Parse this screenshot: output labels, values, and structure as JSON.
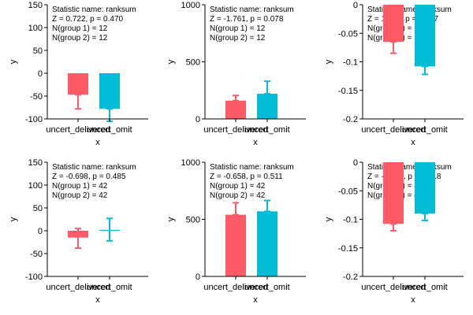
{
  "colors": {
    "group1": "#fd5c67",
    "group2": "#00bcd6",
    "axis": "#000000"
  },
  "chart_data": [
    {
      "type": "bar",
      "categories": [
        "uncert_delivered",
        "uncert_omit"
      ],
      "values": [
        -47,
        -78
      ],
      "error_low": [
        -78,
        -105
      ],
      "error_high": [
        -47,
        -78
      ],
      "ylim": [
        -100,
        150
      ],
      "yticks": [
        -100,
        -50,
        0,
        50,
        100,
        150
      ],
      "ytick_labels": [
        "-100",
        "-50",
        "0",
        "50",
        "100",
        "150"
      ],
      "xlabel": "x",
      "ylabel": "y",
      "annotations": [
        "Statistic name: ranksum",
        "Z = 0.722, p = 0.470",
        "N(group 1) = 12",
        "N(group 2) = 12"
      ]
    },
    {
      "type": "bar",
      "categories": [
        "uncert_delivered",
        "uncert_omit"
      ],
      "values": [
        160,
        220
      ],
      "error_low": [
        160,
        220
      ],
      "error_high": [
        205,
        330
      ],
      "ylim": [
        0,
        1000
      ],
      "yticks": [
        0,
        500,
        1000
      ],
      "ytick_labels": [
        "0",
        "500",
        "1000"
      ],
      "xlabel": "x",
      "ylabel": "y",
      "annotations": [
        "Statistic name: ranksum",
        "Z = -1.761, p = 0.078",
        "N(group 1) = 12",
        "N(group 2) = 12"
      ]
    },
    {
      "type": "bar",
      "categories": [
        "uncert_delivered",
        "uncert_omit"
      ],
      "values": [
        -0.065,
        -0.108
      ],
      "error_low": [
        -0.085,
        -0.122
      ],
      "error_high": [
        -0.065,
        -0.108
      ],
      "ylim": [
        -0.2,
        0
      ],
      "yticks": [
        -0.2,
        -0.15,
        -0.1,
        -0.05,
        0
      ],
      "ytick_labels": [
        "-0.2",
        "-0.15",
        "-0.1",
        "-0.05",
        "0"
      ],
      "xlabel": "x",
      "ylabel": "y",
      "annotations": [
        "Statistic name: ranksum",
        "Z = 1.184, p = 0.237",
        "N(group 1) = 12",
        "N(group 2) = 12"
      ]
    },
    {
      "type": "bar",
      "categories": [
        "uncert_delivered",
        "uncert_omit"
      ],
      "values": [
        -15,
        2
      ],
      "error_low": [
        -38,
        -22
      ],
      "error_high": [
        5,
        27
      ],
      "ylim": [
        -100,
        150
      ],
      "yticks": [
        -100,
        -50,
        0,
        50,
        100,
        150
      ],
      "ytick_labels": [
        "-100",
        "-50",
        "0",
        "50",
        "100",
        "150"
      ],
      "xlabel": "x",
      "ylabel": "y",
      "annotations": [
        "Statistic name: ranksum",
        "Z = -0.698, p = 0.485",
        "N(group 1) = 42",
        "N(group 2) = 42"
      ]
    },
    {
      "type": "bar",
      "categories": [
        "uncert_delivered",
        "uncert_omit"
      ],
      "values": [
        540,
        570
      ],
      "error_low": [
        540,
        570
      ],
      "error_high": [
        645,
        665
      ],
      "ylim": [
        0,
        1000
      ],
      "yticks": [
        0,
        500,
        1000
      ],
      "ytick_labels": [
        "0",
        "500",
        "1000"
      ],
      "xlabel": "x",
      "ylabel": "y",
      "annotations": [
        "Statistic name: ranksum",
        "Z = -0.658, p = 0.511",
        "N(group 1) = 42",
        "N(group 2) = 42"
      ]
    },
    {
      "type": "bar",
      "categories": [
        "uncert_delivered",
        "uncert_omit"
      ],
      "values": [
        -0.108,
        -0.09
      ],
      "error_low": [
        -0.12,
        -0.102
      ],
      "error_high": [
        -0.108,
        -0.09
      ],
      "ylim": [
        -0.2,
        0
      ],
      "yticks": [
        -0.2,
        -0.15,
        -0.1,
        -0.05,
        0
      ],
      "ytick_labels": [
        "-0.2",
        "-0.15",
        "-0.1",
        "-0.05",
        "0"
      ],
      "xlabel": "x",
      "ylabel": "y",
      "annotations": [
        "Statistic name: ranksum",
        "Z = -0.810, p = 0.418",
        "N(group 1) = 42",
        "N(group 2) = 42"
      ]
    }
  ]
}
